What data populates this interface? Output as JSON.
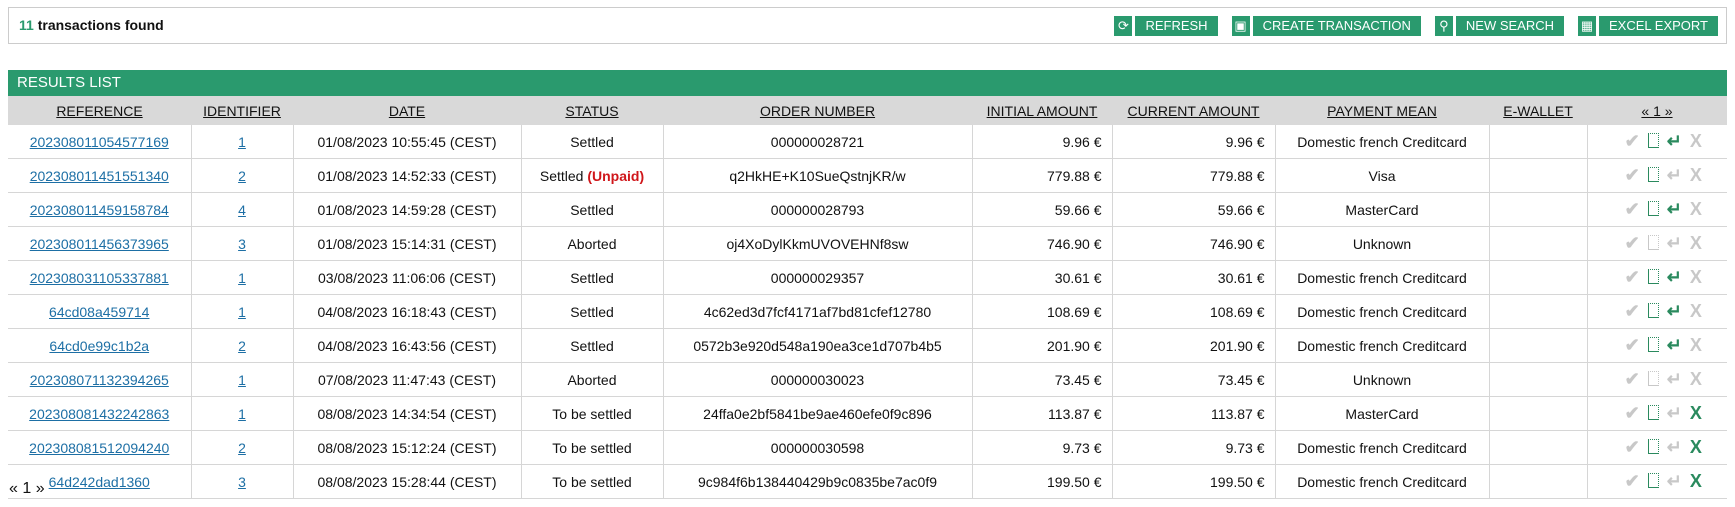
{
  "summary": {
    "count": "11",
    "label": " transactions found"
  },
  "toolbar": {
    "refresh": "REFRESH",
    "create": "CREATE TRANSACTION",
    "search": "NEW SEARCH",
    "export": "EXCEL EXPORT"
  },
  "results_title": "RESULTS LIST",
  "columns": [
    "REFERENCE",
    "IDENTIFIER",
    "DATE",
    "STATUS",
    "ORDER NUMBER",
    "INITIAL AMOUNT",
    "CURRENT AMOUNT",
    "PAYMENT MEAN",
    "E-WALLET",
    "« 1 »"
  ],
  "rows": [
    {
      "ref": "202308011054577169",
      "id": "1",
      "date": "01/08/2023 10:55:45 (CEST)",
      "status": "Settled",
      "flag": "",
      "order": "000000028721",
      "initial": "9.96 €",
      "current": "9.96 €",
      "payment": "Domestic french Creditcard",
      "ewallet": "",
      "actions": {
        "validate": false,
        "duplicate": true,
        "refund": true,
        "cancel": false
      }
    },
    {
      "ref": "202308011451551340",
      "id": "2",
      "date": "01/08/2023 14:52:33 (CEST)",
      "status": "Settled",
      "flag": "(Unpaid)",
      "order": "q2HkHE+K10SueQstnjKR/w",
      "initial": "779.88 €",
      "current": "779.88 €",
      "payment": "Visa",
      "ewallet": "",
      "actions": {
        "validate": false,
        "duplicate": true,
        "refund": false,
        "cancel": false
      }
    },
    {
      "ref": "202308011459158784",
      "id": "4",
      "date": "01/08/2023 14:59:28 (CEST)",
      "status": "Settled",
      "flag": "",
      "order": "000000028793",
      "initial": "59.66 €",
      "current": "59.66 €",
      "payment": "MasterCard",
      "ewallet": "",
      "actions": {
        "validate": false,
        "duplicate": true,
        "refund": true,
        "cancel": false
      }
    },
    {
      "ref": "202308011456373965",
      "id": "3",
      "date": "01/08/2023 15:14:31 (CEST)",
      "status": "Aborted",
      "flag": "",
      "order": "oj4XoDylKkmUVOVEHNf8sw",
      "initial": "746.90 €",
      "current": "746.90 €",
      "payment": "Unknown",
      "ewallet": "",
      "actions": {
        "validate": false,
        "duplicate": false,
        "refund": false,
        "cancel": false
      }
    },
    {
      "ref": "202308031105337881",
      "id": "1",
      "date": "03/08/2023 11:06:06 (CEST)",
      "status": "Settled",
      "flag": "",
      "order": "000000029357",
      "initial": "30.61 €",
      "current": "30.61 €",
      "payment": "Domestic french Creditcard",
      "ewallet": "",
      "actions": {
        "validate": false,
        "duplicate": true,
        "refund": true,
        "cancel": false
      }
    },
    {
      "ref": "64cd08a459714",
      "id": "1",
      "date": "04/08/2023 16:18:43 (CEST)",
      "status": "Settled",
      "flag": "",
      "order": "4c62ed3d7fcf4171af7bd81cfef12780",
      "initial": "108.69 €",
      "current": "108.69 €",
      "payment": "Domestic french Creditcard",
      "ewallet": "",
      "actions": {
        "validate": false,
        "duplicate": true,
        "refund": true,
        "cancel": false
      }
    },
    {
      "ref": "64cd0e99c1b2a",
      "id": "2",
      "date": "04/08/2023 16:43:56 (CEST)",
      "status": "Settled",
      "flag": "",
      "order": "0572b3e920d548a190ea3ce1d707b4b5",
      "initial": "201.90 €",
      "current": "201.90 €",
      "payment": "Domestic french Creditcard",
      "ewallet": "",
      "actions": {
        "validate": false,
        "duplicate": true,
        "refund": true,
        "cancel": false
      }
    },
    {
      "ref": "202308071132394265",
      "id": "1",
      "date": "07/08/2023 11:47:43 (CEST)",
      "status": "Aborted",
      "flag": "",
      "order": "000000030023",
      "initial": "73.45 €",
      "current": "73.45 €",
      "payment": "Unknown",
      "ewallet": "",
      "actions": {
        "validate": false,
        "duplicate": false,
        "refund": false,
        "cancel": false
      }
    },
    {
      "ref": "202308081432242863",
      "id": "1",
      "date": "08/08/2023 14:34:54 (CEST)",
      "status": "To be settled",
      "flag": "",
      "order": "24ffa0e2bf5841be9ae460efe0f9c896",
      "initial": "113.87 €",
      "current": "113.87 €",
      "payment": "MasterCard",
      "ewallet": "",
      "actions": {
        "validate": false,
        "duplicate": true,
        "refund": false,
        "cancel": true
      }
    },
    {
      "ref": "202308081512094240",
      "id": "2",
      "date": "08/08/2023 15:12:24 (CEST)",
      "status": "To be settled",
      "flag": "",
      "order": "000000030598",
      "initial": "9.73 €",
      "current": "9.73 €",
      "payment": "Domestic french Creditcard",
      "ewallet": "",
      "actions": {
        "validate": false,
        "duplicate": true,
        "refund": false,
        "cancel": true
      }
    },
    {
      "ref": "64d242dad1360",
      "id": "3",
      "date": "08/08/2023 15:28:44 (CEST)",
      "status": "To be settled",
      "flag": "",
      "order": "9c984f6b138440429b9c0835be7ac0f9",
      "initial": "199.50 €",
      "current": "199.50 €",
      "payment": "Domestic french Creditcard",
      "ewallet": "",
      "actions": {
        "validate": false,
        "duplicate": true,
        "refund": false,
        "cancel": true
      }
    }
  ],
  "pager": "« 1 »",
  "colors": {
    "accent": "#2a9a6e",
    "unpaid": "#d0161a",
    "link": "#1d6fa5",
    "disabled": "#c8c8c8"
  }
}
